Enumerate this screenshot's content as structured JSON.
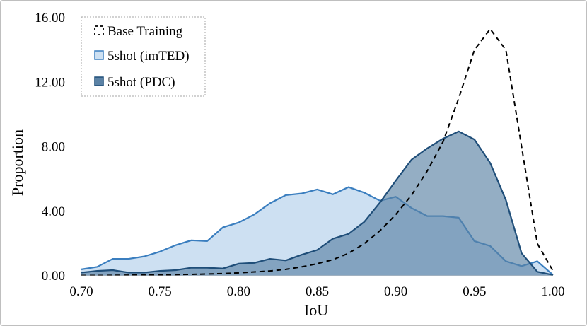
{
  "chart_data": {
    "type": "area",
    "title": "",
    "xlabel": "IoU",
    "ylabel": "Proportion",
    "xlim": [
      0.7,
      1.0
    ],
    "ylim": [
      0,
      16
    ],
    "xticks": [
      0.7,
      0.75,
      0.8,
      0.85,
      0.9,
      0.95,
      1.0
    ],
    "xtick_labels": [
      "0.70",
      "0.75",
      "0.80",
      "0.85",
      "0.90",
      "0.95",
      "1.00"
    ],
    "yticks": [
      0,
      4,
      8,
      12,
      16
    ],
    "ytick_labels": [
      "0.00",
      "4.00",
      "8.00",
      "12.00",
      "16.00"
    ],
    "legend_position": "top-left",
    "series": [
      {
        "name": "Base Training",
        "style": "dashed-line",
        "color": "#000000",
        "x": [
          0.7,
          0.71,
          0.72,
          0.73,
          0.74,
          0.75,
          0.76,
          0.77,
          0.78,
          0.79,
          0.8,
          0.81,
          0.82,
          0.83,
          0.84,
          0.85,
          0.86,
          0.87,
          0.88,
          0.89,
          0.9,
          0.91,
          0.92,
          0.93,
          0.94,
          0.95,
          0.96,
          0.97,
          0.98,
          0.99,
          1.0
        ],
        "values": [
          0.02,
          0.02,
          0.03,
          0.04,
          0.05,
          0.06,
          0.07,
          0.09,
          0.11,
          0.14,
          0.18,
          0.24,
          0.3,
          0.4,
          0.55,
          0.75,
          1.0,
          1.4,
          2.0,
          2.8,
          3.8,
          5.0,
          6.5,
          8.3,
          11.0,
          14.0,
          15.3,
          14.0,
          8.0,
          2.0,
          0.3
        ]
      },
      {
        "name": "5shot (imTED)",
        "style": "area",
        "color": "#3a7ebf",
        "fill": "#cde0f2",
        "x": [
          0.7,
          0.71,
          0.72,
          0.73,
          0.74,
          0.75,
          0.76,
          0.77,
          0.78,
          0.79,
          0.8,
          0.81,
          0.82,
          0.83,
          0.84,
          0.85,
          0.86,
          0.87,
          0.88,
          0.89,
          0.9,
          0.91,
          0.92,
          0.93,
          0.94,
          0.95,
          0.96,
          0.97,
          0.98,
          0.99,
          1.0
        ],
        "values": [
          0.4,
          0.55,
          1.05,
          1.05,
          1.2,
          1.5,
          1.9,
          2.2,
          2.15,
          3.0,
          3.3,
          3.8,
          4.5,
          5.0,
          5.1,
          5.35,
          5.05,
          5.5,
          5.15,
          4.65,
          4.9,
          4.2,
          3.7,
          3.7,
          3.6,
          2.15,
          1.85,
          0.9,
          0.6,
          0.9,
          0.05
        ]
      },
      {
        "name": "5shot (PDC)",
        "style": "area",
        "color": "#1f4e79",
        "fill": "#5b82a5",
        "x": [
          0.7,
          0.71,
          0.72,
          0.73,
          0.74,
          0.75,
          0.76,
          0.77,
          0.78,
          0.79,
          0.8,
          0.81,
          0.82,
          0.83,
          0.84,
          0.85,
          0.86,
          0.87,
          0.88,
          0.89,
          0.9,
          0.91,
          0.92,
          0.93,
          0.94,
          0.95,
          0.96,
          0.97,
          0.98,
          0.99,
          1.0
        ],
        "values": [
          0.2,
          0.3,
          0.35,
          0.2,
          0.2,
          0.3,
          0.35,
          0.5,
          0.5,
          0.45,
          0.75,
          0.8,
          1.05,
          0.95,
          1.3,
          1.6,
          2.3,
          2.6,
          3.35,
          4.55,
          5.9,
          7.2,
          7.9,
          8.5,
          8.95,
          8.45,
          7.0,
          4.7,
          1.4,
          0.25,
          0.05
        ]
      }
    ]
  }
}
